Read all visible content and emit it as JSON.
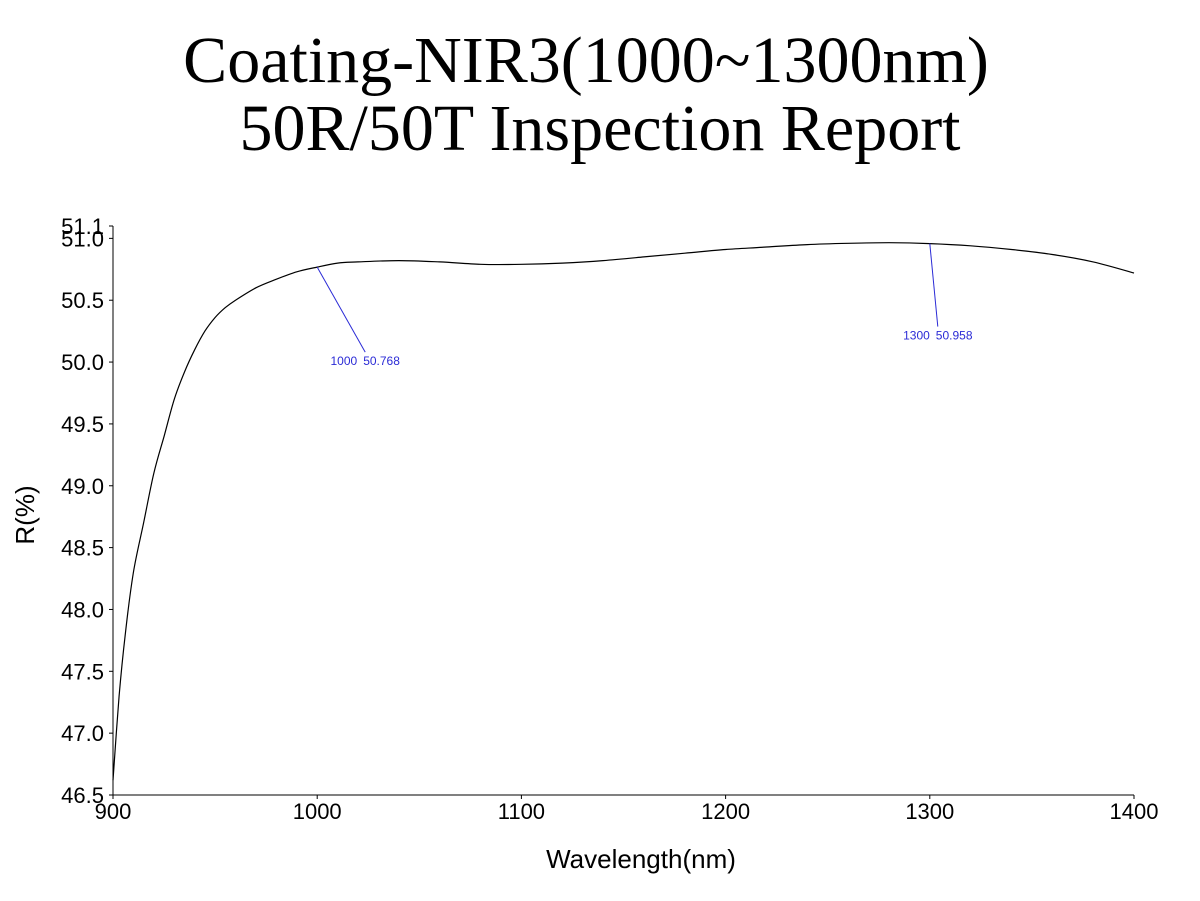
{
  "title_line1": "Coating-NIR3(1000~1300nm)",
  "title_line2": "50R/50T Inspection Report",
  "chart_data": {
    "type": "line",
    "title": "Coating-NIR3(1000~1300nm) 50R/50T Inspection Report",
    "xlabel": "Wavelength(nm)",
    "ylabel": "R(%)",
    "xlim": [
      900,
      1400
    ],
    "ylim": [
      46.5,
      51.1
    ],
    "x_ticks": [
      900,
      1000,
      1100,
      1200,
      1300,
      1400
    ],
    "x_tick_labels": [
      "900",
      "1000",
      "1100",
      "1200",
      "1300",
      "1400"
    ],
    "y_ticks": [
      46.5,
      47.0,
      47.5,
      48.0,
      48.5,
      49.0,
      49.5,
      50.0,
      50.5,
      51.0,
      51.1
    ],
    "y_tick_labels": [
      "46.5",
      "47.0",
      "47.5",
      "48.0",
      "48.5",
      "49.0",
      "49.5",
      "50.0",
      "50.5",
      "51.0",
      "51.1"
    ],
    "grid": false,
    "series": [
      {
        "name": "R",
        "x": [
          900,
          903,
          906,
          910,
          915,
          920,
          925,
          930,
          935,
          940,
          945,
          950,
          955,
          960,
          970,
          980,
          990,
          1000,
          1010,
          1020,
          1040,
          1060,
          1080,
          1100,
          1120,
          1140,
          1160,
          1180,
          1200,
          1220,
          1240,
          1260,
          1280,
          1300,
          1320,
          1340,
          1360,
          1380,
          1400
        ],
        "y": [
          46.62,
          47.3,
          47.8,
          48.3,
          48.7,
          49.1,
          49.4,
          49.7,
          49.92,
          50.1,
          50.25,
          50.36,
          50.44,
          50.5,
          50.6,
          50.67,
          50.73,
          50.768,
          50.8,
          50.81,
          50.82,
          50.81,
          50.79,
          50.79,
          50.8,
          50.82,
          50.85,
          50.88,
          50.91,
          50.93,
          50.95,
          50.96,
          50.965,
          50.958,
          50.94,
          50.91,
          50.87,
          50.81,
          50.72
        ]
      }
    ],
    "annotations": [
      {
        "x": 1000,
        "y": 50.768,
        "wavelength_text": "1000",
        "value_text": "50.768"
      },
      {
        "x": 1300,
        "y": 50.958,
        "wavelength_text": "1300",
        "value_text": "50.958"
      }
    ],
    "colors": {
      "line": "#000000",
      "annotation": "#2b2bd6",
      "axis": "#000000"
    }
  }
}
